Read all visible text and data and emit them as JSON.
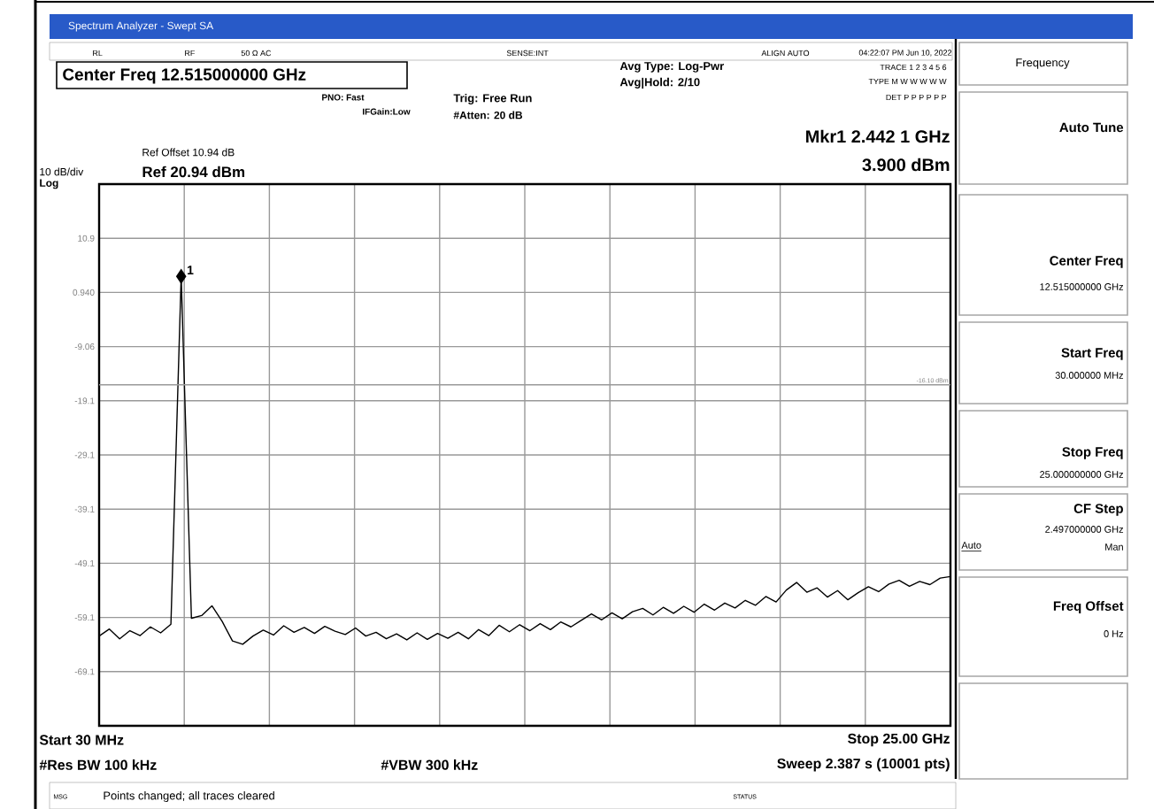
{
  "chart_data": {
    "type": "line",
    "title": "Spectrum Analyzer - Swept SA",
    "categories": [
      null,
      null,
      null,
      null,
      null,
      null,
      null,
      null,
      null,
      null,
      null,
      null,
      null,
      null,
      null,
      null,
      null,
      null,
      null,
      null,
      null,
      null,
      null,
      null,
      null,
      null,
      null,
      null,
      null,
      null,
      null,
      null,
      null,
      null,
      null,
      null,
      null,
      null,
      null,
      null,
      null,
      null,
      null,
      null,
      null,
      null,
      null,
      null,
      null,
      null,
      null,
      null,
      null,
      null,
      null,
      null,
      null,
      null,
      null,
      null,
      null,
      null,
      null,
      null,
      null,
      null,
      null,
      null,
      null,
      null,
      null,
      null,
      null,
      null,
      null,
      null,
      null,
      null,
      null,
      null,
      null,
      null,
      null,
      null
    ],
    "series": [
      {
        "color": "#000000",
        "values": [
          -62.5,
          -61.2,
          -63.0,
          -61.5,
          -62.4,
          -60.8,
          -61.9,
          -60.3,
          3.9,
          -59.2,
          -58.7,
          -56.9,
          -59.8,
          -63.4,
          -64.0,
          -62.5,
          -61.4,
          -62.3,
          -60.6,
          -61.8,
          -60.9,
          -62.0,
          -60.7,
          -61.6,
          -62.2,
          -61.0,
          -62.5,
          -61.8,
          -63.0,
          -62.1,
          -63.2,
          -61.9,
          -63.1,
          -62.0,
          -62.9,
          -61.8,
          -63.0,
          -61.3,
          -62.4,
          -60.5,
          -61.7,
          -60.4,
          -61.5,
          -60.2,
          -61.3,
          -59.9,
          -60.8,
          -59.6,
          -58.4,
          -59.5,
          -58.2,
          -59.3,
          -58.0,
          -57.4,
          -58.6,
          -57.2,
          -58.3,
          -57.0,
          -58.1,
          -56.6,
          -57.7,
          -56.4,
          -57.3,
          -55.9,
          -56.8,
          -55.2,
          -56.2,
          -54.0,
          -52.6,
          -54.4,
          -53.6,
          -55.3,
          -54.1,
          -55.8,
          -54.5,
          -53.4,
          -54.3,
          -52.9,
          -52.2,
          -53.3,
          -52.4,
          -53.0,
          -51.8,
          -51.5
        ]
      }
    ],
    "ylim": [
      -79.06,
      20.94
    ],
    "yticks": [
      {
        "value": 10.94,
        "label": "10.9"
      },
      {
        "value": 0.94,
        "label": "0.940"
      },
      {
        "value": -9.06,
        "label": "-9.06"
      },
      {
        "value": -19.06,
        "label": "-19.1"
      },
      {
        "value": -29.06,
        "label": "-29.1"
      },
      {
        "value": -39.06,
        "label": "-39.1"
      },
      {
        "value": -49.06,
        "label": "-49.1"
      },
      {
        "value": -59.06,
        "label": "-59.1"
      },
      {
        "value": -69.06,
        "label": "-69.1"
      }
    ],
    "grid": true,
    "tick_labels": "y",
    "ref_lines": [
      {
        "axis": "y",
        "value": -16.1,
        "label": "-16.10 dBm",
        "color": "#999999"
      }
    ],
    "annotations": [
      "RL",
      "RF",
      "50 Ω AC",
      "SENSE:INT",
      "ALIGN AUTO",
      "04:22:07 PM Jun 10, 2022",
      "Center Freq 12.515000000 GHz",
      "PNO: Fast",
      "IFGain:Low",
      "Trig: Free Run",
      "#Atten: 20 dB",
      "Avg Type: Log-Pwr",
      "Avg|Hold: 2/10",
      "TRACE 1 2 3 4 5 6",
      "TYPE M W W W W W",
      "DET P P P P P P",
      "Ref Offset 10.94 dB",
      "10 dB/div",
      "Ref 20.94 dBm",
      "Log",
      "Mkr1 2.442 1 GHz",
      "3.900 dBm",
      "Start 30 MHz",
      "Stop 25.00 GHz",
      "#Res BW 100 kHz",
      "#VBW 300 kHz",
      "Sweep  2.387 s (10001 pts)",
      "MSG",
      "Points changed; all traces cleared",
      "STATUS",
      "Frequency",
      "Auto Tune",
      "Center Freq",
      "12.515000000 GHz",
      "Start Freq",
      "30.000000 MHz",
      "Stop Freq",
      "25.000000000 GHz",
      "CF Step",
      "2.497000000 GHz",
      "Auto",
      "Man",
      "Freq Offset",
      "0 Hz",
      "1"
    ]
  }
}
